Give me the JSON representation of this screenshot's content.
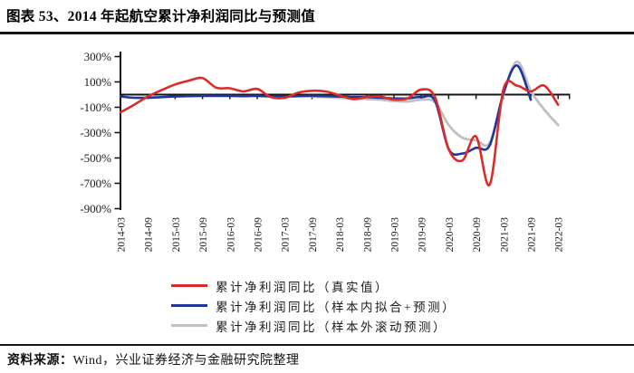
{
  "header": {
    "title": "图表 53、2014 年起航空累计净利润同比与预测值"
  },
  "footer": {
    "source_prefix": "资料来源：",
    "source_text": "Wind，兴业证券经济与金融研究院整理"
  },
  "chart_data": {
    "type": "line",
    "title": "2014 年起航空累计净利润同比与预测值",
    "grid": false,
    "legend_position": "bottom",
    "y_unit": "%",
    "ylim": [
      -900,
      300
    ],
    "y_ticks": [
      300,
      100,
      -100,
      -300,
      -500,
      -700,
      -900
    ],
    "y_tick_labels": [
      "300%",
      "100%",
      "-100%",
      "-300%",
      "-500%",
      "-700%",
      "-900%"
    ],
    "x_tick_labels": [
      "2014-03",
      "2014-09",
      "2015-03",
      "2015-09",
      "2016-03",
      "2016-09",
      "2017-03",
      "2017-09",
      "2018-03",
      "2018-09",
      "2019-03",
      "2019-09",
      "2020-03",
      "2020-09",
      "2021-03",
      "2021-09",
      "2022-03"
    ],
    "categories": [
      "2014-03",
      "2014-06",
      "2014-09",
      "2014-12",
      "2015-03",
      "2015-06",
      "2015-09",
      "2015-12",
      "2016-03",
      "2016-06",
      "2016-09",
      "2016-12",
      "2017-03",
      "2017-06",
      "2017-09",
      "2017-12",
      "2018-03",
      "2018-06",
      "2018-09",
      "2018-12",
      "2019-03",
      "2019-06",
      "2019-09",
      "2019-12",
      "2020-03",
      "2020-06",
      "2020-09",
      "2020-12",
      "2021-03",
      "2021-06",
      "2021-09",
      "2021-12",
      "2022-03"
    ],
    "series": [
      {
        "name": "累计净利润同比（真实值）",
        "color": "#db2b27",
        "values": [
          -140,
          -80,
          -15,
          35,
          80,
          110,
          130,
          55,
          50,
          25,
          45,
          -20,
          -25,
          15,
          30,
          25,
          -5,
          -35,
          -20,
          -15,
          -40,
          -30,
          40,
          -20,
          -430,
          -520,
          -330,
          -710,
          40,
          70,
          25,
          70,
          -80
        ]
      },
      {
        "name": "累计净利润同比（样本内拟合+预测）",
        "color": "#1e3699",
        "values": [
          -15,
          -25,
          -25,
          -20,
          -15,
          -12,
          -10,
          -10,
          -10,
          -12,
          -10,
          -15,
          -15,
          -12,
          -10,
          -12,
          -15,
          -20,
          -20,
          -25,
          -30,
          -30,
          -20,
          -50,
          -430,
          -465,
          -420,
          -400,
          10,
          230,
          -40,
          null,
          null
        ]
      },
      {
        "name": "累计净利润同比（样本外滚动预测）",
        "color": "#bfc0c4",
        "values": [
          null,
          null,
          null,
          null,
          null,
          null,
          null,
          null,
          null,
          null,
          null,
          null,
          null,
          null,
          -15,
          -20,
          -25,
          -30,
          -35,
          -40,
          -50,
          -55,
          -40,
          -60,
          -240,
          -340,
          -360,
          -380,
          0,
          260,
          30,
          -120,
          -240
        ]
      }
    ]
  }
}
